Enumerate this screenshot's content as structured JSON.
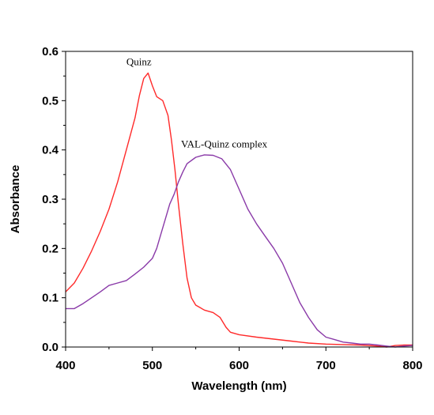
{
  "chart_data": {
    "type": "line",
    "title": "",
    "xlabel": "Wavelength (nm)",
    "ylabel": "Absorbance",
    "xlim": [
      400,
      800
    ],
    "ylim": [
      0.0,
      0.6
    ],
    "x_ticks": [
      400,
      500,
      600,
      700,
      800
    ],
    "y_ticks": [
      0.0,
      0.1,
      0.2,
      0.3,
      0.4,
      0.5,
      0.6
    ],
    "x_tick_labels": [
      "400",
      "500",
      "600",
      "700",
      "800"
    ],
    "y_tick_labels": [
      "0.0",
      "0.1",
      "0.2",
      "0.3",
      "0.4",
      "0.5",
      "0.6"
    ],
    "grid": false,
    "legend": "none",
    "series": [
      {
        "name": "Quinz",
        "color": "#ff2a2a",
        "points": [
          [
            400,
            0.112
          ],
          [
            410,
            0.13
          ],
          [
            420,
            0.16
          ],
          [
            430,
            0.195
          ],
          [
            440,
            0.235
          ],
          [
            450,
            0.28
          ],
          [
            460,
            0.335
          ],
          [
            470,
            0.4
          ],
          [
            480,
            0.465
          ],
          [
            485,
            0.51
          ],
          [
            490,
            0.545
          ],
          [
            495,
            0.556
          ],
          [
            500,
            0.53
          ],
          [
            505,
            0.508
          ],
          [
            512,
            0.5
          ],
          [
            518,
            0.47
          ],
          [
            522,
            0.42
          ],
          [
            526,
            0.36
          ],
          [
            530,
            0.29
          ],
          [
            535,
            0.21
          ],
          [
            540,
            0.14
          ],
          [
            545,
            0.1
          ],
          [
            550,
            0.085
          ],
          [
            560,
            0.075
          ],
          [
            570,
            0.07
          ],
          [
            578,
            0.06
          ],
          [
            585,
            0.04
          ],
          [
            590,
            0.03
          ],
          [
            600,
            0.025
          ],
          [
            620,
            0.02
          ],
          [
            640,
            0.016
          ],
          [
            660,
            0.012
          ],
          [
            680,
            0.008
          ],
          [
            700,
            0.006
          ],
          [
            720,
            0.005
          ],
          [
            740,
            0.004
          ],
          [
            760,
            0.002
          ],
          [
            770,
            0.0
          ],
          [
            780,
            0.003
          ],
          [
            790,
            0.004
          ],
          [
            800,
            0.004
          ]
        ]
      },
      {
        "name": "VAL-Quinz complex",
        "color": "#8a3aa8",
        "points": [
          [
            400,
            0.078
          ],
          [
            410,
            0.078
          ],
          [
            420,
            0.088
          ],
          [
            430,
            0.1
          ],
          [
            440,
            0.112
          ],
          [
            450,
            0.125
          ],
          [
            460,
            0.13
          ],
          [
            470,
            0.135
          ],
          [
            480,
            0.148
          ],
          [
            490,
            0.162
          ],
          [
            500,
            0.18
          ],
          [
            505,
            0.2
          ],
          [
            510,
            0.23
          ],
          [
            515,
            0.26
          ],
          [
            520,
            0.29
          ],
          [
            525,
            0.31
          ],
          [
            530,
            0.335
          ],
          [
            535,
            0.355
          ],
          [
            540,
            0.372
          ],
          [
            550,
            0.385
          ],
          [
            560,
            0.39
          ],
          [
            570,
            0.389
          ],
          [
            580,
            0.382
          ],
          [
            590,
            0.36
          ],
          [
            600,
            0.32
          ],
          [
            610,
            0.28
          ],
          [
            620,
            0.25
          ],
          [
            630,
            0.225
          ],
          [
            640,
            0.2
          ],
          [
            650,
            0.17
          ],
          [
            655,
            0.15
          ],
          [
            660,
            0.13
          ],
          [
            670,
            0.09
          ],
          [
            680,
            0.06
          ],
          [
            690,
            0.035
          ],
          [
            700,
            0.02
          ],
          [
            710,
            0.015
          ],
          [
            720,
            0.01
          ],
          [
            730,
            0.008
          ],
          [
            740,
            0.006
          ],
          [
            750,
            0.006
          ],
          [
            760,
            0.004
          ],
          [
            770,
            0.002
          ],
          [
            780,
            0.0
          ],
          [
            790,
            0.002
          ],
          [
            800,
            0.003
          ]
        ]
      }
    ],
    "annotations": [
      {
        "text": "Quinz",
        "x": 470,
        "y": 0.572
      },
      {
        "text": "VAL-Quinz complex",
        "x": 533,
        "y": 0.405
      }
    ]
  }
}
